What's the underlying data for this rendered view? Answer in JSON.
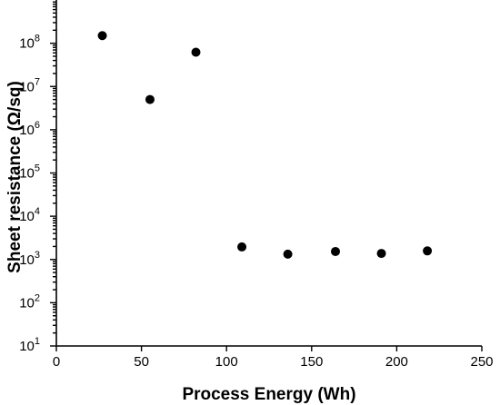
{
  "chart_data": {
    "type": "scatter",
    "xlabel": "Process Energy (Wh)",
    "ylabel": "Sheet resistance (Ω/sq)",
    "xlim": [
      0,
      250
    ],
    "ylim": [
      10,
      1000000000
    ],
    "yscale": "log",
    "grid": false,
    "x_ticks": [
      0,
      50,
      100,
      150,
      200,
      250
    ],
    "x_tick_labels": [
      "0",
      "50",
      "100",
      "150",
      "200",
      "250"
    ],
    "y_ticks": [
      10,
      100,
      1000,
      10000,
      100000,
      1000000,
      10000000,
      100000000
    ],
    "y_tick_labels": [
      {
        "base": "10",
        "exp": "1"
      },
      {
        "base": "10",
        "exp": "2"
      },
      {
        "base": "10",
        "exp": "3"
      },
      {
        "base": "10",
        "exp": "4"
      },
      {
        "base": "10",
        "exp": "5"
      },
      {
        "base": "10",
        "exp": "6"
      },
      {
        "base": "10",
        "exp": "7"
      },
      {
        "base": "10",
        "exp": "8"
      }
    ],
    "points": [
      {
        "x": 27,
        "y": 150000000
      },
      {
        "x": 55,
        "y": 5000000
      },
      {
        "x": 82,
        "y": 62000000
      },
      {
        "x": 109,
        "y": 1950
      },
      {
        "x": 136,
        "y": 1330
      },
      {
        "x": 164,
        "y": 1530
      },
      {
        "x": 191,
        "y": 1380
      },
      {
        "x": 218,
        "y": 1580
      }
    ],
    "marker_color": "#000000"
  }
}
